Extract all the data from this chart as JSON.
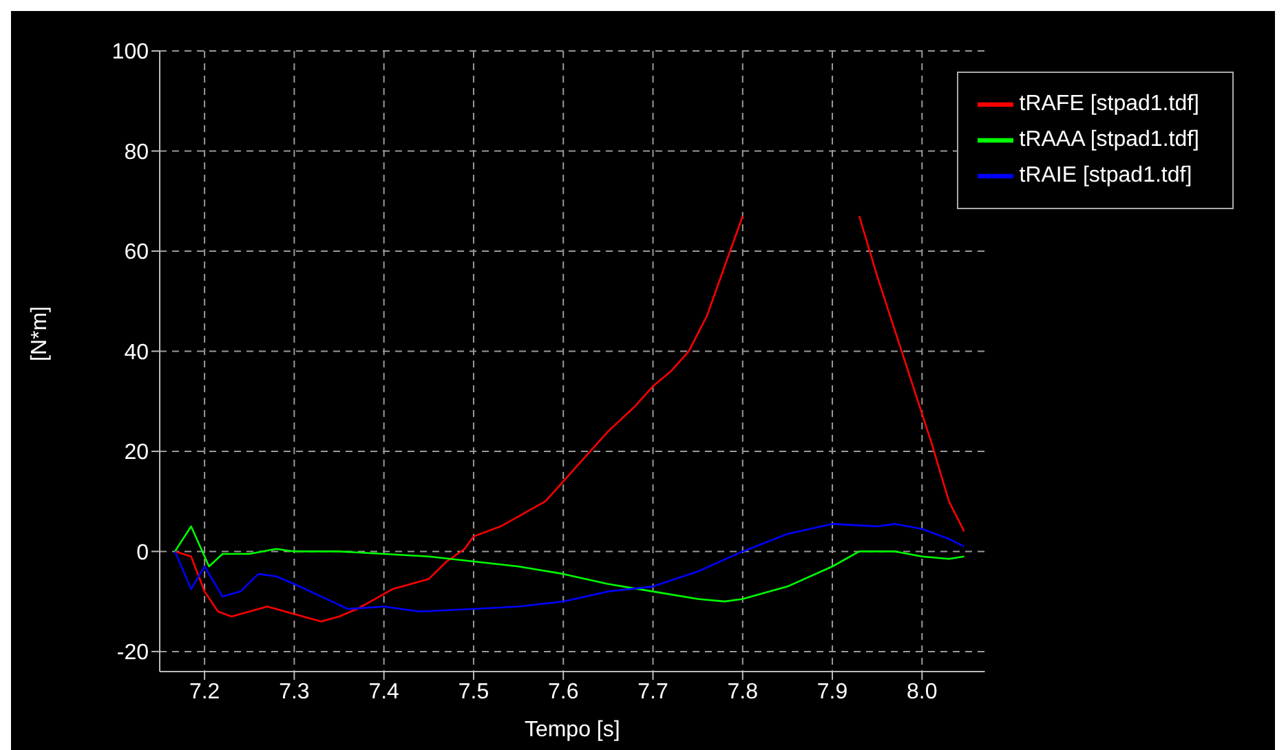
{
  "chart_data": {
    "type": "line",
    "xlabel": "Tempo [s]",
    "ylabel": "[N*m]",
    "xlim": [
      7.15,
      8.07
    ],
    "xticks": [
      {
        "value": 7.2,
        "label": "7.2"
      },
      {
        "value": 7.3,
        "label": "7.3"
      },
      {
        "value": 7.4,
        "label": "7.4"
      },
      {
        "value": 7.5,
        "label": "7.5"
      },
      {
        "value": 7.6,
        "label": "7.6"
      },
      {
        "value": 7.7,
        "label": "7.7"
      },
      {
        "value": 7.8,
        "label": "7.8"
      },
      {
        "value": 7.9,
        "label": "7.9"
      },
      {
        "value": 8.0,
        "label": "8.0"
      }
    ],
    "ylim": [
      -24,
      100
    ],
    "yticks": [
      -20,
      0,
      20,
      40,
      60,
      80,
      100
    ],
    "grid": true,
    "legend": "top right",
    "marker": "none",
    "line_style": "solid",
    "series": [
      {
        "name": "tRAFE [stpad1.tdf]",
        "color": "#ff0000",
        "x": [
          7.167,
          7.185,
          7.2,
          7.215,
          7.23,
          7.25,
          7.27,
          7.29,
          7.31,
          7.33,
          7.35,
          7.37,
          7.39,
          7.41,
          7.43,
          7.45,
          7.47,
          7.49,
          7.5,
          7.53,
          7.56,
          7.58,
          7.6,
          7.62,
          7.65,
          7.68,
          7.7,
          7.72,
          7.74,
          7.76,
          7.78,
          7.8,
          7.86,
          7.93,
          7.95,
          7.97,
          7.99,
          8.01,
          8.03,
          8.047
        ],
        "values": [
          0,
          -1,
          -8,
          -12,
          -13,
          -12,
          -11,
          -12,
          -13,
          -14,
          -13,
          -11.5,
          -9.5,
          -7.5,
          -6.5,
          -5.5,
          -2,
          0.5,
          3,
          5,
          8,
          10,
          14,
          18,
          24,
          29,
          33,
          36,
          40,
          47,
          57,
          67,
          null,
          67,
          55,
          44,
          33,
          22,
          10,
          4
        ]
      },
      {
        "name": "tRAAA [stpad1.tdf]",
        "color": "#00ff00",
        "x": [
          7.167,
          7.185,
          7.205,
          7.22,
          7.25,
          7.28,
          7.3,
          7.35,
          7.4,
          7.45,
          7.5,
          7.55,
          7.6,
          7.65,
          7.7,
          7.75,
          7.78,
          7.8,
          7.85,
          7.9,
          7.93,
          7.97,
          8.0,
          8.03,
          8.047
        ],
        "values": [
          0,
          5,
          -3,
          -0.5,
          -0.5,
          0.5,
          0,
          0,
          -0.5,
          -1,
          -2,
          -3,
          -4.5,
          -6.5,
          -8,
          -9.5,
          -10,
          -9.5,
          -7,
          -3,
          0,
          0,
          -1,
          -1.5,
          -1
        ]
      },
      {
        "name": "tRAIE [stpad1.tdf]",
        "color": "#0000ff",
        "x": [
          7.167,
          7.185,
          7.2,
          7.22,
          7.24,
          7.26,
          7.28,
          7.3,
          7.33,
          7.36,
          7.4,
          7.44,
          7.5,
          7.55,
          7.6,
          7.65,
          7.7,
          7.75,
          7.8,
          7.85,
          7.9,
          7.95,
          7.97,
          8.0,
          8.03,
          8.047
        ],
        "values": [
          0,
          -7.5,
          -3,
          -9,
          -8,
          -4.5,
          -5,
          -6.5,
          -9,
          -11.5,
          -11,
          -12,
          -11.5,
          -11,
          -10,
          -8,
          -7,
          -4,
          0,
          3.5,
          5.5,
          5,
          5.5,
          4.5,
          2.5,
          1
        ]
      }
    ]
  }
}
